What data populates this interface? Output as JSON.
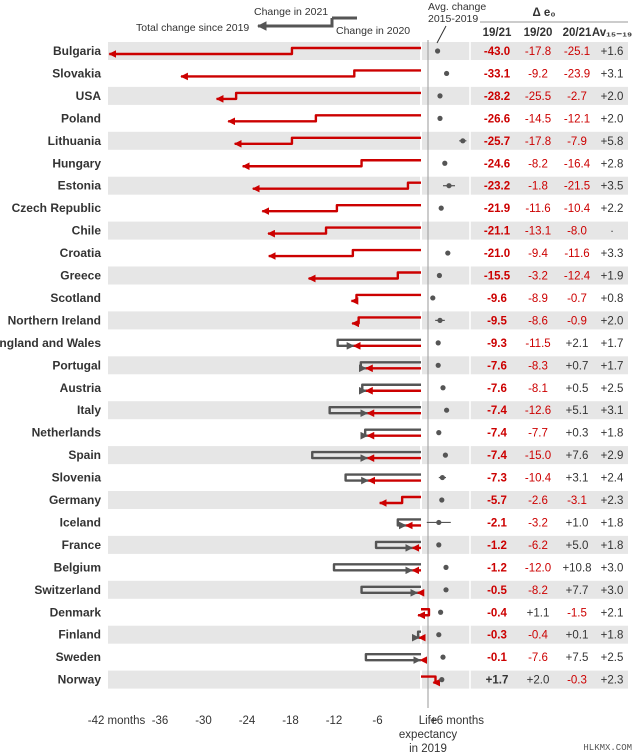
{
  "colors": {
    "red": "#cc0000",
    "dark": "#555555",
    "stripe": "#e6e6e6",
    "text": "#333333"
  },
  "annotations": {
    "change_2021": "Change in 2021",
    "total_change": "Total change since 2019",
    "change_2020": "Change in 2020",
    "avg_change_line1": "Avg. change",
    "avg_change_line2": "2015-2019",
    "delta_header": "Δ e₀",
    "life_line1": "Life",
    "life_line2": "expectancy",
    "life_line3": "in 2019",
    "watermark": "HLKMX.COM"
  },
  "table_headers": {
    "c1": "19/21",
    "c2": "19/20",
    "c3": "20/21",
    "c4": "Av₁₅₋₁₉"
  },
  "chart_data": {
    "type": "table",
    "x_axis": {
      "unit": "months",
      "range": [
        -42,
        6
      ],
      "ticks": [
        -42,
        -36,
        -30,
        -24,
        -18,
        -12,
        -6,
        6
      ],
      "tick_labels": [
        "-42 months",
        "-36",
        "-30",
        "-24",
        "-18",
        "-12",
        "-6",
        "+6 months"
      ]
    },
    "rows": [
      {
        "country": "Bulgaria",
        "c1921": "-43.0",
        "c1920": "-17.8",
        "c2021": "-25.1",
        "avg": "+1.6",
        "t2020": -17.8,
        "t2021": -43.0,
        "avgv": 1.6,
        "err": 0.4
      },
      {
        "country": "Slovakia",
        "c1921": "-33.1",
        "c1920": "-9.2",
        "c2021": "-23.9",
        "avg": "+3.1",
        "t2020": -9.2,
        "t2021": -33.1,
        "avgv": 3.1,
        "err": 0.3
      },
      {
        "country": "USA",
        "c1921": "-28.2",
        "c1920": "-25.5",
        "c2021": "-2.7",
        "avg": "+2.0",
        "t2020": -25.5,
        "t2021": -28.2,
        "avgv": 2.0,
        "err": 0.3
      },
      {
        "country": "Poland",
        "c1921": "-26.6",
        "c1920": "-14.5",
        "c2021": "-12.1",
        "avg": "+2.0",
        "t2020": -14.5,
        "t2021": -26.6,
        "avgv": 2.0,
        "err": 0.3
      },
      {
        "country": "Lithuania",
        "c1921": "-25.7",
        "c1920": "-17.8",
        "c2021": "-7.9",
        "avg": "+5.8",
        "t2020": -17.8,
        "t2021": -25.7,
        "avgv": 5.8,
        "err": 0.6
      },
      {
        "country": "Hungary",
        "c1921": "-24.6",
        "c1920": "-8.2",
        "c2021": "-16.4",
        "avg": "+2.8",
        "t2020": -8.2,
        "t2021": -24.6,
        "avgv": 2.8,
        "err": 0.3
      },
      {
        "country": "Estonia",
        "c1921": "-23.2",
        "c1920": "-1.8",
        "c2021": "-21.5",
        "avg": "+3.5",
        "t2020": -1.8,
        "t2021": -23.2,
        "avgv": 3.5,
        "err": 1.0
      },
      {
        "country": "Czech Republic",
        "c1921": "-21.9",
        "c1920": "-11.6",
        "c2021": "-10.4",
        "avg": "+2.2",
        "t2020": -11.6,
        "t2021": -21.9,
        "avgv": 2.2,
        "err": 0.3
      },
      {
        "country": "Chile",
        "c1921": "-21.1",
        "c1920": "-13.1",
        "c2021": "-8.0",
        "avg": "·",
        "t2020": -13.1,
        "t2021": -21.1,
        "avgv": null,
        "err": 0
      },
      {
        "country": "Croatia",
        "c1921": "-21.0",
        "c1920": "-9.4",
        "c2021": "-11.6",
        "avg": "+3.3",
        "t2020": -9.4,
        "t2021": -21.0,
        "avgv": 3.3,
        "err": 0.4
      },
      {
        "country": "Greece",
        "c1921": "-15.5",
        "c1920": "-3.2",
        "c2021": "-12.4",
        "avg": "+1.9",
        "t2020": -3.2,
        "t2021": -15.5,
        "avgv": 1.9,
        "err": 0.3
      },
      {
        "country": "Scotland",
        "c1921": "-9.6",
        "c1920": "-8.9",
        "c2021": "-0.7",
        "avg": "+0.8",
        "t2020": -8.9,
        "t2021": -9.6,
        "avgv": 0.8,
        "err": 0.3
      },
      {
        "country": "Northern Ireland",
        "c1921": "-9.5",
        "c1920": "-8.6",
        "c2021": "-0.9",
        "avg": "+2.0",
        "t2020": -8.6,
        "t2021": -9.5,
        "avgv": 2.0,
        "err": 0.8
      },
      {
        "country": "England and Wales",
        "c1921": "-9.3",
        "c1920": "-11.5",
        "c2021": "+2.1",
        "avg": "+1.7",
        "t2020": -11.5,
        "t2021": -9.3,
        "avgv": 1.7,
        "err": 0.2
      },
      {
        "country": "Portugal",
        "c1921": "-7.6",
        "c1920": "-8.3",
        "c2021": "+0.7",
        "avg": "+1.7",
        "t2020": -8.3,
        "t2021": -7.6,
        "avgv": 1.7,
        "err": 0.2
      },
      {
        "country": "Austria",
        "c1921": "-7.6",
        "c1920": "-8.1",
        "c2021": "+0.5",
        "avg": "+2.5",
        "t2020": -8.1,
        "t2021": -7.6,
        "avgv": 2.5,
        "err": 0.2
      },
      {
        "country": "Italy",
        "c1921": "-7.4",
        "c1920": "-12.6",
        "c2021": "+5.1",
        "avg": "+3.1",
        "t2020": -12.6,
        "t2021": -7.4,
        "avgv": 3.1,
        "err": 0.2
      },
      {
        "country": "Netherlands",
        "c1921": "-7.4",
        "c1920": "-7.7",
        "c2021": "+0.3",
        "avg": "+1.8",
        "t2020": -7.7,
        "t2021": -7.4,
        "avgv": 1.8,
        "err": 0.2
      },
      {
        "country": "Spain",
        "c1921": "-7.4",
        "c1920": "-15.0",
        "c2021": "+7.6",
        "avg": "+2.9",
        "t2020": -15.0,
        "t2021": -7.4,
        "avgv": 2.9,
        "err": 0.2
      },
      {
        "country": "Slovenia",
        "c1921": "-7.3",
        "c1920": "-10.4",
        "c2021": "+3.1",
        "avg": "+2.4",
        "t2020": -10.4,
        "t2021": -7.3,
        "avgv": 2.4,
        "err": 0.6
      },
      {
        "country": "Germany",
        "c1921": "-5.7",
        "c1920": "-2.6",
        "c2021": "-3.1",
        "avg": "+2.3",
        "t2020": -2.6,
        "t2021": -5.7,
        "avgv": 2.3,
        "err": 0.2
      },
      {
        "country": "Iceland",
        "c1921": "-2.1",
        "c1920": "-3.2",
        "c2021": "+1.0",
        "avg": "+1.8",
        "t2020": -3.2,
        "t2021": -2.1,
        "avgv": 1.8,
        "err": 2.0
      },
      {
        "country": "France",
        "c1921": "-1.2",
        "c1920": "-6.2",
        "c2021": "+5.0",
        "avg": "+1.8",
        "t2020": -6.2,
        "t2021": -1.2,
        "avgv": 1.8,
        "err": 0.2
      },
      {
        "country": "Belgium",
        "c1921": "-1.2",
        "c1920": "-12.0",
        "c2021": "+10.8",
        "avg": "+3.0",
        "t2020": -12.0,
        "t2021": -1.2,
        "avgv": 3.0,
        "err": 0.2
      },
      {
        "country": "Switzerland",
        "c1921": "-0.5",
        "c1920": "-8.2",
        "c2021": "+7.7",
        "avg": "+3.0",
        "t2020": -8.2,
        "t2021": -0.5,
        "avgv": 3.0,
        "err": 0.2
      },
      {
        "country": "Denmark",
        "c1921": "-0.4",
        "c1920": "+1.1",
        "c2021": "-1.5",
        "avg": "+2.1",
        "t2020": 1.1,
        "t2021": -0.4,
        "avgv": 2.1,
        "err": 0.3
      },
      {
        "country": "Finland",
        "c1921": "-0.3",
        "c1920": "-0.4",
        "c2021": "+0.1",
        "avg": "+1.8",
        "t2020": -0.4,
        "t2021": -0.3,
        "avgv": 1.8,
        "err": 0.2
      },
      {
        "country": "Sweden",
        "c1921": "-0.1",
        "c1920": "-7.6",
        "c2021": "+7.5",
        "avg": "+2.5",
        "t2020": -7.6,
        "t2021": -0.1,
        "avgv": 2.5,
        "err": 0.2
      },
      {
        "country": "Norway",
        "c1921": "+1.7",
        "c1920": "+2.0",
        "c2021": "-0.3",
        "avg": "+2.3",
        "t2020": 2.0,
        "t2021": 1.7,
        "avgv": 2.3,
        "err": 0.2
      }
    ]
  }
}
